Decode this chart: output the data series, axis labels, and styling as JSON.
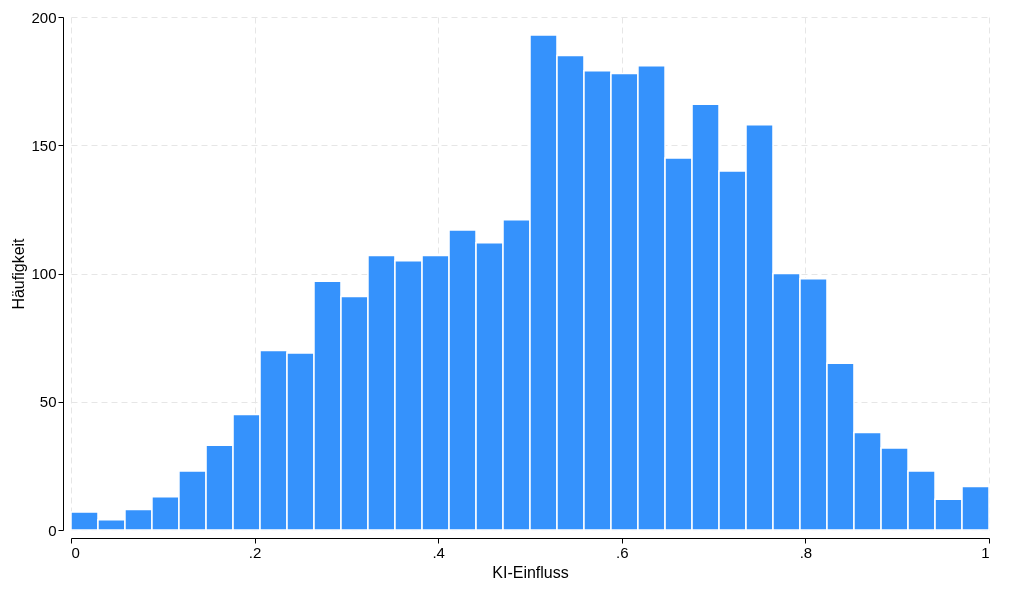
{
  "chart_data": {
    "type": "histogram",
    "xlabel": "KI-Einfluss",
    "ylabel": "Häufigkeit",
    "bins": [
      0,
      0.0294,
      0.0588,
      0.0882,
      0.1176,
      0.1471,
      0.1765,
      0.2059,
      0.2353,
      0.2647,
      0.2941,
      0.3235,
      0.3529,
      0.3824,
      0.4118,
      0.4412,
      0.4706,
      0.5,
      0.5294,
      0.5588,
      0.5882,
      0.6176,
      0.6471,
      0.6765,
      0.7059,
      0.7353,
      0.7647,
      0.7941,
      0.8235,
      0.8529,
      0.8824,
      0.9118,
      0.9412,
      0.9706,
      1
    ],
    "values": [
      7,
      4,
      8,
      13,
      23,
      33,
      45,
      70,
      69,
      97,
      91,
      107,
      105,
      107,
      117,
      112,
      121,
      193,
      185,
      179,
      178,
      181,
      145,
      166,
      140,
      158,
      100,
      98,
      65,
      38,
      32,
      23,
      12,
      17
    ],
    "color": "#3592fc",
    "xlim": [
      0,
      1
    ],
    "xticks": [
      0,
      {
        "value": 0.2,
        "label": ".2"
      },
      {
        "value": 0.4,
        "label": ".4"
      },
      {
        "value": 0.6,
        "label": ".6"
      },
      {
        "value": 0.8,
        "label": ".8"
      },
      1
    ],
    "ylim": [
      0,
      200
    ],
    "yticks": [
      0,
      50,
      100,
      150,
      200
    ],
    "grid": true
  }
}
